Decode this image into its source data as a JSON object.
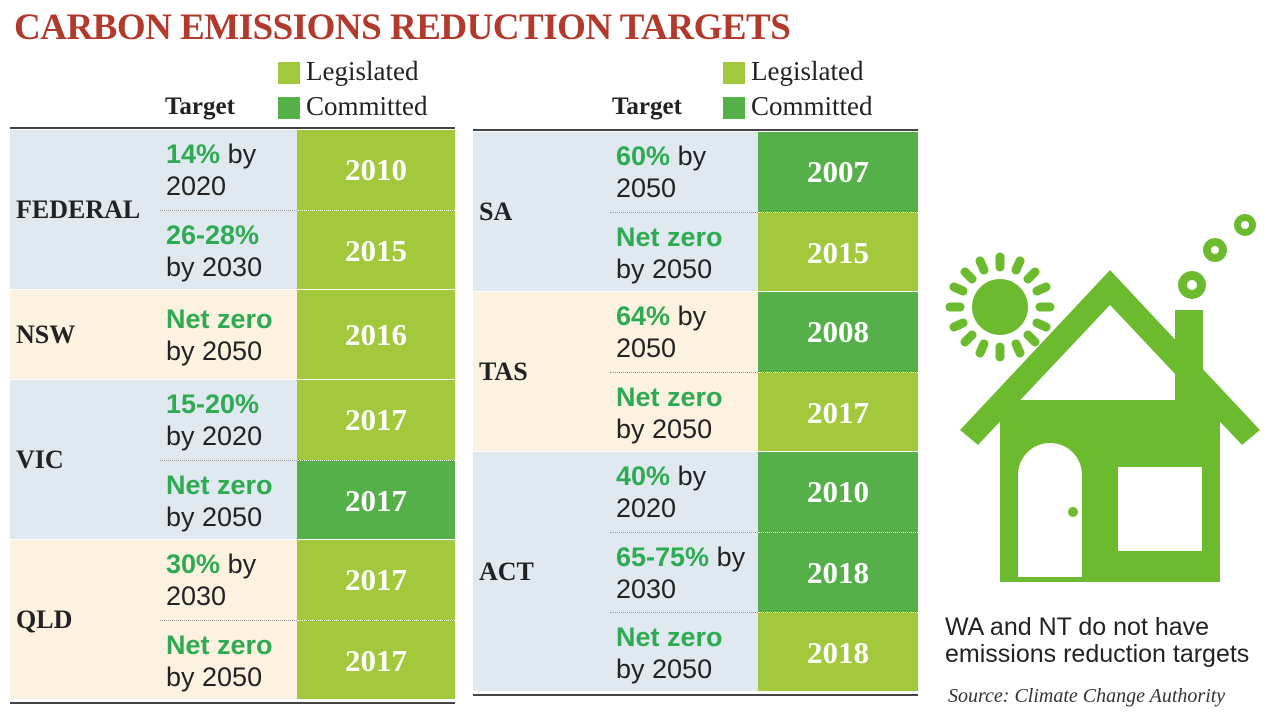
{
  "title": "CARBON EMISSIONS REDUCTION TARGETS",
  "legend": [
    {
      "label": "Legislated",
      "color": "#a2c83b"
    },
    {
      "label": "Committed",
      "color": "#55b049"
    }
  ],
  "panels": [
    {
      "target_header": "Target",
      "rows": [
        {
          "name": "FEDERAL",
          "background": "#dfe9ef",
          "targets": [
            {
              "amount": "14%",
              "rest": "by 2020",
              "year": "2010",
              "color": "#a2c83b"
            },
            {
              "amount": "26-28%",
              "rest": "by 2030",
              "year": "2015",
              "color": "#a2c83b"
            }
          ]
        },
        {
          "name": "NSW",
          "background": "#fcf2df",
          "targets": [
            {
              "amount": "Net zero",
              "rest": "by 2050",
              "year": "2016",
              "color": "#a2c83b"
            }
          ]
        },
        {
          "name": "VIC",
          "background": "#dfe9ef",
          "targets": [
            {
              "amount": "15-20%",
              "rest": "by 2020",
              "year": "2017",
              "color": "#a2c83b"
            },
            {
              "amount": "Net zero",
              "rest": "by 2050",
              "year": "2017",
              "color": "#55b049"
            }
          ]
        },
        {
          "name": "QLD",
          "background": "#fcf2df",
          "targets": [
            {
              "amount": "30%",
              "rest": "by 2030",
              "year": "2017",
              "color": "#a2c83b"
            },
            {
              "amount": "Net zero",
              "rest": "by 2050",
              "year": "2017",
              "color": "#a2c83b"
            }
          ]
        }
      ]
    },
    {
      "target_header": "Target",
      "rows": [
        {
          "name": "SA",
          "background": "#dfe9ef",
          "targets": [
            {
              "amount": "60%",
              "rest": "by 2050",
              "year": "2007",
              "color": "#55b049"
            },
            {
              "amount": "Net zero",
              "rest": "by 2050",
              "year": "2015",
              "color": "#a2c83b"
            }
          ]
        },
        {
          "name": "TAS",
          "background": "#fcf2df",
          "targets": [
            {
              "amount": "64%",
              "rest": "by 2050",
              "year": "2008",
              "color": "#55b049"
            },
            {
              "amount": "Net zero",
              "rest": "by 2050",
              "year": "2017",
              "color": "#a2c83b"
            }
          ]
        },
        {
          "name": "ACT",
          "background": "#dfe9ef",
          "targets": [
            {
              "amount": "40%",
              "rest": "by 2020",
              "year": "2010",
              "color": "#55b049"
            },
            {
              "amount": "65-75%",
              "rest": "by 2030",
              "year": "2018",
              "color": "#55b049"
            },
            {
              "amount": "Net zero",
              "rest": "by 2050",
              "year": "2018",
              "color": "#a2c83b"
            }
          ]
        }
      ]
    }
  ],
  "note": "WA and NT do not have emissions reduction targets",
  "source": "Source: Climate Change Authority"
}
